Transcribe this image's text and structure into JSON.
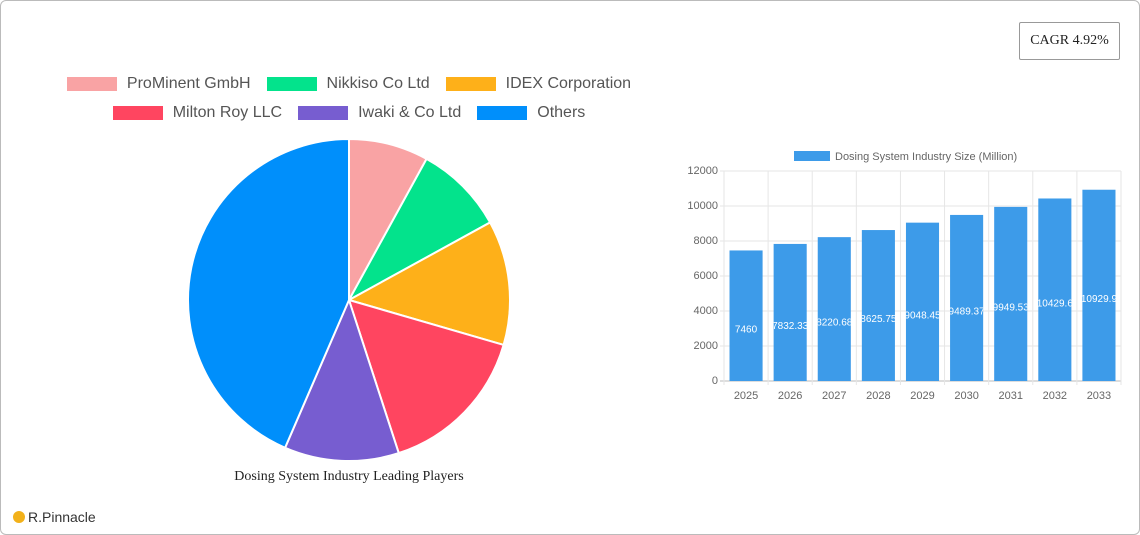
{
  "cagr": "CAGR 4.92%",
  "brand": "R.Pinnacle",
  "chart_data": [
    {
      "type": "pie",
      "title": "Dosing System Industry Leading Players",
      "categories": [
        "ProMinent GmbH",
        "Nikkiso Co  Ltd",
        "IDEX Corporation",
        "Milton Roy LLC",
        "Iwaki & Co  Ltd",
        "Others"
      ],
      "values": [
        8,
        9,
        12.5,
        15.5,
        11.5,
        43.5
      ],
      "colors": [
        "#f9a3a4",
        "#03e38c",
        "#feb019",
        "#ff4560",
        "#775dd0",
        "#008ffb"
      ]
    },
    {
      "type": "bar",
      "categories": [
        "2025",
        "2026",
        "2027",
        "2028",
        "2029",
        "2030",
        "2031",
        "2032",
        "2033"
      ],
      "series": [
        {
          "name": "Dosing System Industry Size (Million)",
          "color": "#3d9be9",
          "values": [
            7460,
            7832.33,
            8220.68,
            8625.75,
            9048.45,
            9489.37,
            9949.53,
            10429.6,
            10929.9
          ]
        }
      ],
      "ylim": [
        0,
        12000
      ],
      "yticks": [
        0,
        2000,
        4000,
        6000,
        8000,
        10000,
        12000
      ],
      "grid": true
    }
  ]
}
